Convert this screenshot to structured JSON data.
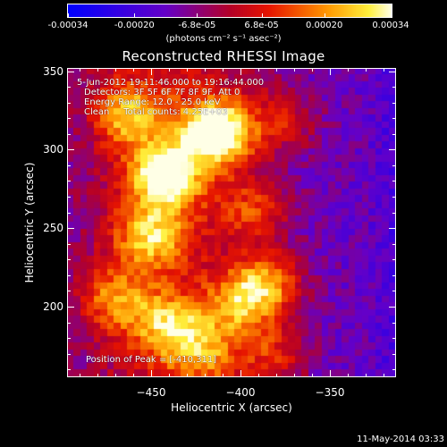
{
  "colorbar": {
    "ticks": [
      "-0.00034",
      "-0.00020",
      "-6.8e-05",
      "6.8e-05",
      "0.00020",
      "0.00034"
    ],
    "units": "(photons cm⁻² s⁻¹ asec⁻²)",
    "range": [
      -0.00034,
      0.00034
    ]
  },
  "chart_data": {
    "type": "heatmap",
    "title": "Reconstructed RHESSI Image",
    "xlabel": "Heliocentric X (arcsec)",
    "ylabel": "Heliocentric Y (arcsec)",
    "xlim": [
      -497,
      -313
    ],
    "ylim": [
      155,
      352
    ],
    "xticks": [
      -450,
      -400,
      -350
    ],
    "yticks": [
      200,
      250,
      300,
      350
    ],
    "grid": false,
    "colormap": "rainbow-hot (blue-purple-red-yellow-white)",
    "peak": [
      -410,
      311
    ],
    "annotations": {
      "time_range": "5-Jun-2012 19:11:46.000 to 19:16:44.000",
      "detectors": "Detectors: 3F 5F 6F 7F 8F 9F, Att 0",
      "energy": "Energy Range: 12.0 - 25.0 keV",
      "method": "Clean     Total counts: 4.25E+03",
      "peak_position": "Position of Peak = [-410,311]"
    },
    "sources": [
      {
        "x": -413,
        "y": 311,
        "amp": 1.0
      },
      {
        "x": -442,
        "y": 283,
        "amp": 0.82
      },
      {
        "x": -462,
        "y": 322,
        "amp": 0.55
      },
      {
        "x": -450,
        "y": 245,
        "amp": 0.55
      },
      {
        "x": -470,
        "y": 205,
        "amp": 0.45
      },
      {
        "x": -440,
        "y": 188,
        "amp": 0.5
      },
      {
        "x": -400,
        "y": 200,
        "amp": 0.48
      },
      {
        "x": -385,
        "y": 215,
        "amp": 0.55
      },
      {
        "x": -420,
        "y": 170,
        "amp": 0.4
      },
      {
        "x": -392,
        "y": 262,
        "amp": 0.35
      },
      {
        "x": -375,
        "y": 318,
        "amp": 0.3
      },
      {
        "x": -380,
        "y": 170,
        "amp": 0.32
      }
    ]
  },
  "footer": {
    "date": "11-May-2014 03:33"
  }
}
